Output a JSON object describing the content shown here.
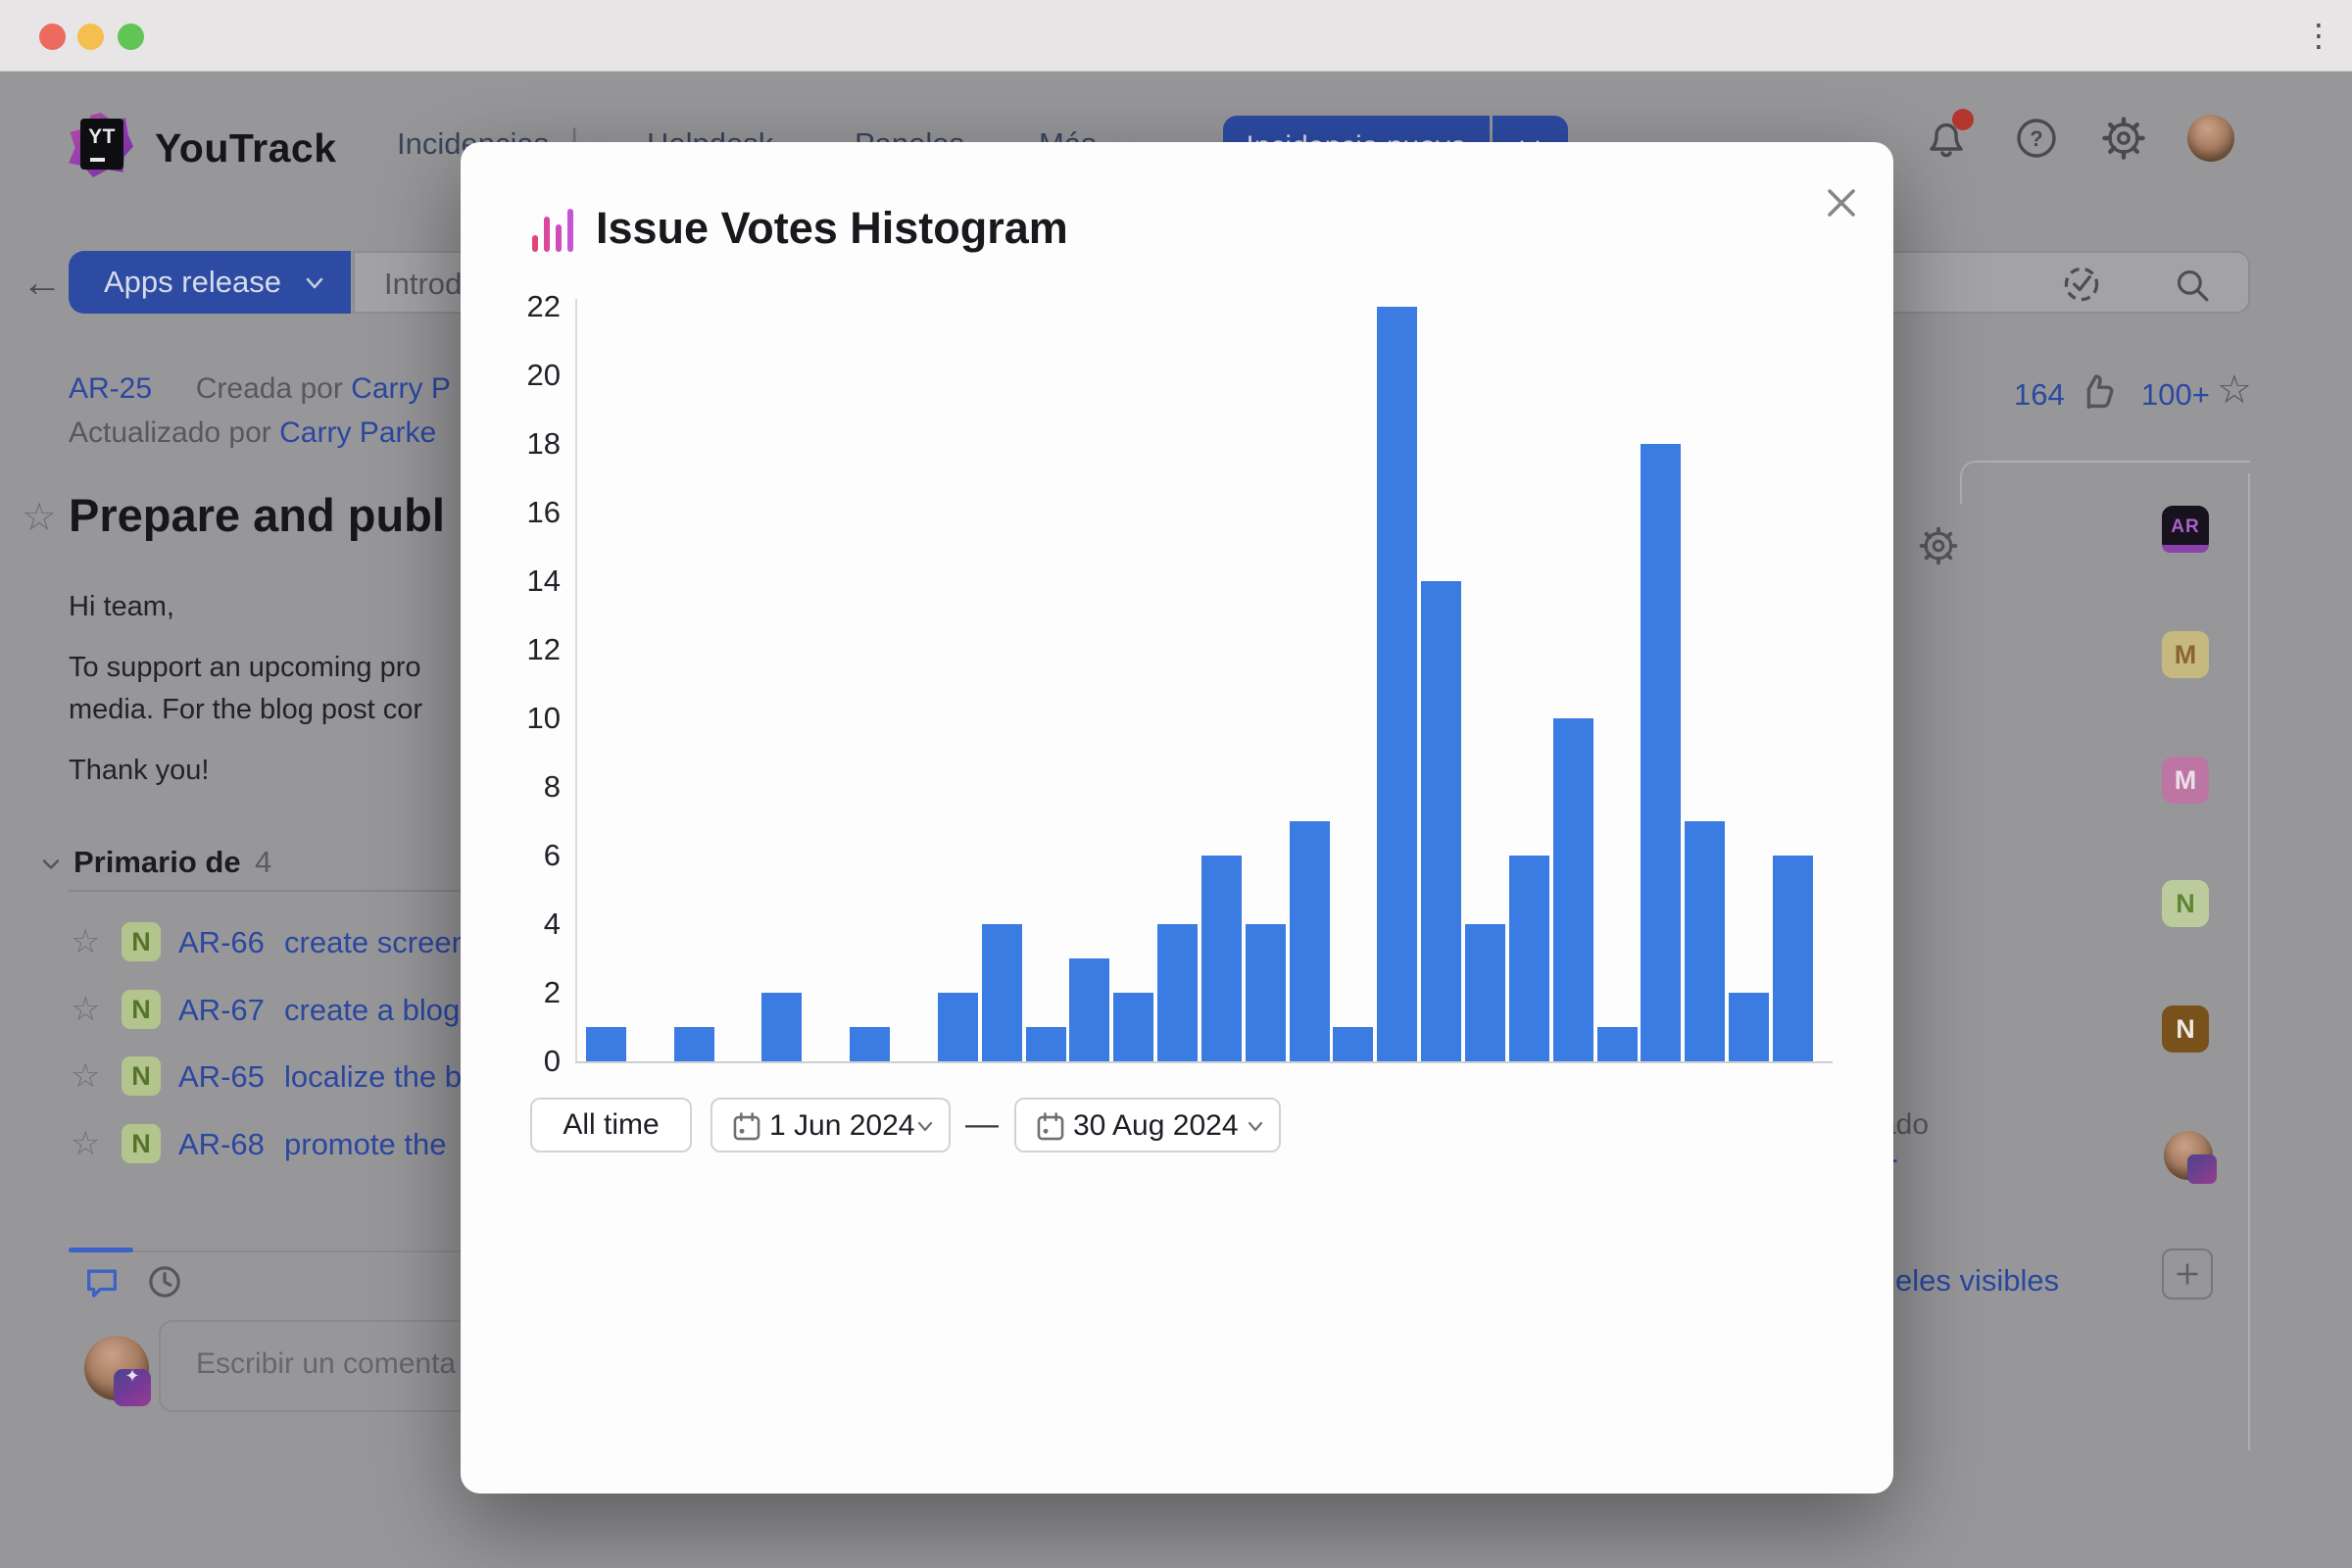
{
  "titlebar": {
    "window_menu_icon": "⋮"
  },
  "header": {
    "brand": "YouTrack",
    "logo_text": "YT",
    "nav": {
      "issues": "Incidencias",
      "helpdesk": "Helpdesk",
      "boards": "Paneles",
      "more": "Más"
    },
    "new_issue_button": "Incidencia nueva"
  },
  "toolbar": {
    "project_button": "Apps release",
    "search_text": "Introdu"
  },
  "issue": {
    "id": "AR-25",
    "created_by_label": "Creada por",
    "created_by": "Carry P",
    "updated_by_label": "Actualizado por",
    "updated_by": "Carry Parke",
    "title": "Prepare and publ",
    "body_line1": "Hi team,",
    "body_line2": "To support an upcoming pro",
    "body_line3": "media. For the blog post cor",
    "body_line4": "Thank you!",
    "votes": "164",
    "stars": "100+"
  },
  "subtasks": {
    "section_label": "Primario de",
    "count": "4",
    "items": [
      {
        "badge": "N",
        "id": "AR-66",
        "text": "create screen"
      },
      {
        "badge": "N",
        "id": "AR-67",
        "text": "create a blog"
      },
      {
        "badge": "N",
        "id": "AR-65",
        "text": "localize the b"
      },
      {
        "badge": "N",
        "id": "AR-68",
        "text": "promote the"
      }
    ]
  },
  "comment": {
    "placeholder": "Escribir un comenta"
  },
  "sidebar_right": {
    "field_fragment": "e",
    "fragment_ado": "ado",
    "fragment_r": "r",
    "panels_link": "eles visibles",
    "badges": [
      {
        "label": "AR",
        "bg": "#17121d",
        "fg": "#a763c9",
        "type": "app"
      },
      {
        "label": "M",
        "bg": "#c5b97f",
        "fg": "#8a6435",
        "type": "user"
      },
      {
        "label": "M",
        "bg": "#bd76a4",
        "fg": "#eadfe7",
        "type": "user"
      },
      {
        "label": "N",
        "bg": "#bccb9c",
        "fg": "#5d8733",
        "type": "user"
      },
      {
        "label": "N",
        "bg": "#78511b",
        "fg": "#efe9e2",
        "type": "user"
      }
    ]
  },
  "modal": {
    "title": "Issue Votes Histogram",
    "controls": {
      "all_time": "All time",
      "from_date": "1 Jun 2024",
      "to_date": "30 Aug 2024",
      "separator": "—"
    }
  },
  "chart_data": {
    "type": "bar",
    "title": "Issue Votes Histogram",
    "values": [
      1,
      0,
      1,
      0,
      2,
      0,
      1,
      0,
      2,
      4,
      1,
      3,
      2,
      4,
      6,
      4,
      7,
      1,
      22,
      14,
      4,
      6,
      10,
      1,
      18,
      7,
      2,
      6
    ],
    "xlabel": "",
    "ylabel": "",
    "ylim": [
      0,
      22
    ],
    "ytick_step": 2,
    "bar_color": "#3b7ce2",
    "grid": false,
    "legend": false
  }
}
